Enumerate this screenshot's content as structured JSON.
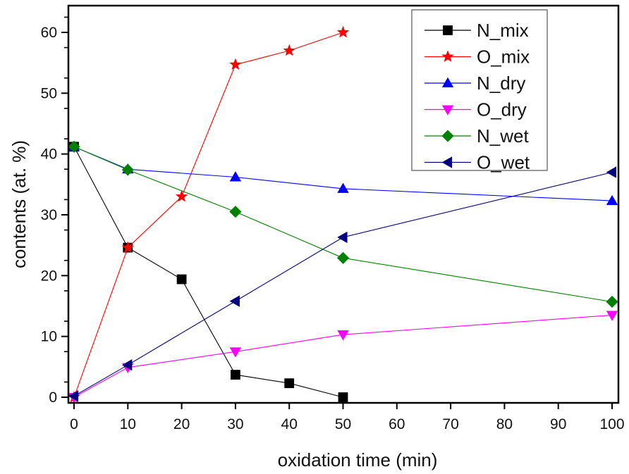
{
  "chart_data": {
    "type": "line",
    "title": "",
    "xlabel": "oxidation time (min)",
    "ylabel": "contents (at. %)",
    "xlim": [
      -1,
      101
    ],
    "ylim": [
      -1,
      65
    ],
    "xticks": [
      0,
      10,
      20,
      30,
      40,
      50,
      60,
      70,
      80,
      90,
      100
    ],
    "yticks": [
      0,
      10,
      20,
      30,
      40,
      50,
      60
    ],
    "grid": false,
    "legend_position": "top-right",
    "series": [
      {
        "name": "N_mix",
        "color": "#000000",
        "marker": "square",
        "x": [
          0,
          10,
          20,
          30,
          40,
          50
        ],
        "y": [
          41.2,
          24.6,
          19.4,
          3.7,
          2.3,
          0.0
        ]
      },
      {
        "name": "O_mix",
        "color": "#ff0000",
        "marker": "star",
        "x": [
          0,
          10,
          20,
          30,
          40,
          50
        ],
        "y": [
          0.0,
          24.6,
          33.0,
          54.7,
          57.0,
          60.0
        ]
      },
      {
        "name": "N_dry",
        "color": "#0000ff",
        "marker": "triangle-up",
        "x": [
          0,
          10,
          30,
          50,
          100
        ],
        "y": [
          41.2,
          37.5,
          36.2,
          34.3,
          32.3
        ]
      },
      {
        "name": "O_dry",
        "color": "#ff00ff",
        "marker": "triangle-down",
        "x": [
          0,
          10,
          30,
          50,
          100
        ],
        "y": [
          0.0,
          4.9,
          7.5,
          10.3,
          13.5
        ]
      },
      {
        "name": "N_wet",
        "color": "#008000",
        "marker": "diamond",
        "x": [
          0,
          10,
          30,
          50,
          100
        ],
        "y": [
          41.2,
          37.4,
          30.5,
          22.9,
          15.7
        ]
      },
      {
        "name": "O_wet",
        "color": "#000080",
        "marker": "triangle-left",
        "x": [
          0,
          10,
          30,
          50,
          100
        ],
        "y": [
          0.2,
          5.3,
          15.8,
          26.3,
          37.0
        ]
      }
    ]
  }
}
